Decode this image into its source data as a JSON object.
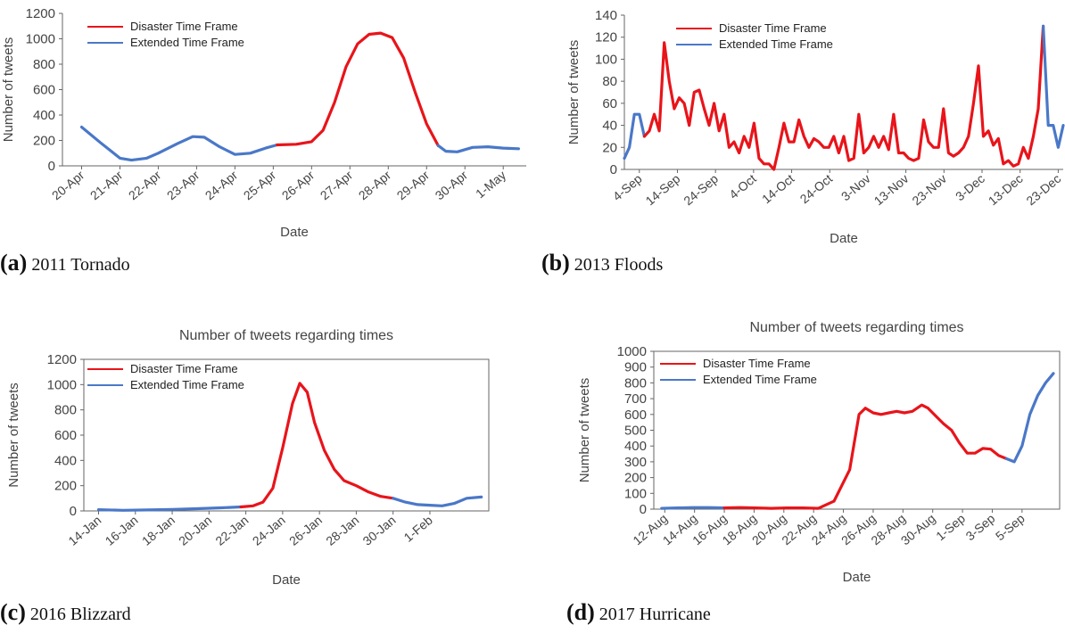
{
  "colors": {
    "disaster": "#e8141a",
    "extended": "#4a78c8"
  },
  "captions": [
    {
      "letter": "(a)",
      "text": "2011 Tornado"
    },
    {
      "letter": "(b)",
      "text": "2013 Floods"
    },
    {
      "letter": "(c)",
      "text": "2016 Blizzard"
    },
    {
      "letter": "(d)",
      "text": "2017 Hurricane"
    }
  ],
  "chart_data": [
    {
      "type": "line",
      "title": "",
      "xlabel": "Date",
      "ylabel": "Number of tweets",
      "ylim": [
        0,
        1200
      ],
      "yticks": [
        0,
        200,
        400,
        600,
        800,
        1000,
        1200
      ],
      "xticks": [
        "20-Apr",
        "21-Apr",
        "22-Apr",
        "23-Apr",
        "24-Apr",
        "25-Apr",
        "26-Apr",
        "27-Apr",
        "28-Apr",
        "29-Apr",
        "30-Apr",
        "1-May"
      ],
      "legend": [
        "Disaster Time Frame",
        "Extended Time Frame"
      ],
      "legend_position": "top-left",
      "grid": false,
      "series": [
        {
          "name": "Extended Time Frame",
          "points": [
            [
              0,
              305
            ],
            [
              0.5,
              180
            ],
            [
              1,
              60
            ],
            [
              1.3,
              45
            ],
            [
              1.7,
              60
            ],
            [
              2,
              100
            ],
            [
              2.5,
              175
            ],
            [
              2.9,
              230
            ],
            [
              3.2,
              225
            ],
            [
              3.6,
              150
            ],
            [
              4,
              90
            ],
            [
              4.4,
              100
            ],
            [
              4.8,
              140
            ],
            [
              5.1,
              165
            ]
          ]
        },
        {
          "name": "Disaster Time Frame",
          "points": [
            [
              5.1,
              165
            ],
            [
              5.6,
              170
            ],
            [
              6,
              190
            ],
            [
              6.3,
              280
            ],
            [
              6.6,
              500
            ],
            [
              6.9,
              780
            ],
            [
              7.2,
              960
            ],
            [
              7.5,
              1035
            ],
            [
              7.8,
              1045
            ],
            [
              8.1,
              1010
            ],
            [
              8.4,
              850
            ],
            [
              8.7,
              580
            ],
            [
              9,
              330
            ],
            [
              9.3,
              160
            ]
          ]
        },
        {
          "name": "Extended Time Frame",
          "points": [
            [
              9.3,
              160
            ],
            [
              9.5,
              115
            ],
            [
              9.8,
              110
            ],
            [
              10.2,
              145
            ],
            [
              10.6,
              150
            ],
            [
              11,
              140
            ],
            [
              11.4,
              135
            ]
          ]
        }
      ]
    },
    {
      "type": "line",
      "title": "",
      "xlabel": "Date",
      "ylabel": "Number of tweets",
      "ylim": [
        0,
        140
      ],
      "yticks": [
        0,
        20,
        40,
        60,
        80,
        100,
        120,
        140
      ],
      "xticks": [
        "4-Sep",
        "14-Sep",
        "24-Sep",
        "4-Oct",
        "14-Oct",
        "24-Oct",
        "3-Nov",
        "13-Nov",
        "23-Nov",
        "3-Dec",
        "13-Dec",
        "23-Dec"
      ],
      "legend": [
        "Disaster Time Frame",
        "Extended Time Frame"
      ],
      "legend_position": "top-left",
      "grid": false,
      "series": [
        {
          "name": "Extended Time Frame",
          "points": [
            [
              0,
              10
            ],
            [
              1,
              20
            ],
            [
              2,
              50
            ],
            [
              3,
              50
            ],
            [
              4,
              30
            ]
          ]
        },
        {
          "name": "Disaster Time Frame",
          "points": [
            [
              4,
              30
            ],
            [
              5,
              35
            ],
            [
              6,
              50
            ],
            [
              7,
              35
            ],
            [
              8,
              115
            ],
            [
              9,
              80
            ],
            [
              10,
              55
            ],
            [
              11,
              65
            ],
            [
              12,
              60
            ],
            [
              13,
              40
            ],
            [
              14,
              70
            ],
            [
              15,
              72
            ],
            [
              16,
              55
            ],
            [
              17,
              40
            ],
            [
              18,
              60
            ],
            [
              19,
              35
            ],
            [
              20,
              50
            ],
            [
              21,
              20
            ],
            [
              22,
              25
            ],
            [
              23,
              15
            ],
            [
              24,
              30
            ],
            [
              25,
              20
            ],
            [
              26,
              42
            ],
            [
              27,
              10
            ],
            [
              28,
              5
            ],
            [
              29,
              5
            ],
            [
              30,
              0
            ],
            [
              31,
              20
            ],
            [
              32,
              42
            ],
            [
              33,
              25
            ],
            [
              34,
              25
            ],
            [
              35,
              45
            ],
            [
              36,
              30
            ],
            [
              37,
              20
            ],
            [
              38,
              28
            ],
            [
              39,
              25
            ],
            [
              40,
              20
            ],
            [
              41,
              20
            ],
            [
              42,
              30
            ],
            [
              43,
              15
            ],
            [
              44,
              30
            ],
            [
              45,
              8
            ],
            [
              46,
              10
            ],
            [
              47,
              50
            ],
            [
              48,
              15
            ],
            [
              49,
              20
            ],
            [
              50,
              30
            ],
            [
              51,
              20
            ],
            [
              52,
              30
            ],
            [
              53,
              18
            ],
            [
              54,
              50
            ],
            [
              55,
              15
            ],
            [
              56,
              15
            ],
            [
              57,
              10
            ],
            [
              58,
              8
            ],
            [
              59,
              10
            ],
            [
              60,
              45
            ],
            [
              61,
              25
            ],
            [
              62,
              20
            ],
            [
              63,
              20
            ],
            [
              64,
              55
            ],
            [
              65,
              15
            ],
            [
              66,
              12
            ],
            [
              67,
              15
            ],
            [
              68,
              20
            ],
            [
              69,
              30
            ],
            [
              70,
              60
            ],
            [
              71,
              94
            ],
            [
              72,
              30
            ],
            [
              73,
              35
            ],
            [
              74,
              22
            ],
            [
              75,
              28
            ],
            [
              76,
              5
            ],
            [
              77,
              8
            ],
            [
              78,
              3
            ],
            [
              79,
              5
            ],
            [
              80,
              20
            ],
            [
              81,
              10
            ],
            [
              82,
              30
            ],
            [
              83,
              55
            ],
            [
              84,
              130
            ]
          ]
        },
        {
          "name": "Extended Time Frame",
          "points": [
            [
              84,
              130
            ],
            [
              85,
              40
            ],
            [
              86,
              40
            ],
            [
              87,
              20
            ],
            [
              88,
              40
            ]
          ]
        }
      ]
    },
    {
      "type": "line",
      "title": "Number of tweets regarding times",
      "xlabel": "Date",
      "ylabel": "Number of tweets",
      "ylim": [
        0,
        1200
      ],
      "yticks": [
        0,
        200,
        400,
        600,
        800,
        1000,
        1200
      ],
      "xticks": [
        "14-Jan",
        "16-Jan",
        "18-Jan",
        "20-Jan",
        "22-Jan",
        "24-Jan",
        "26-Jan",
        "28-Jan",
        "30-Jan",
        "1-Feb"
      ],
      "legend": [
        "Disaster Time Frame",
        "Extended Time Frame"
      ],
      "legend_position": "top-left",
      "grid": false,
      "series": [
        {
          "name": "Extended Time Frame",
          "points": [
            [
              0,
              10
            ],
            [
              1,
              5
            ],
            [
              2,
              8
            ],
            [
              3,
              12
            ],
            [
              4,
              18
            ],
            [
              5,
              25
            ],
            [
              5.8,
              32
            ]
          ]
        },
        {
          "name": "Disaster Time Frame",
          "points": [
            [
              5.8,
              32
            ],
            [
              6.3,
              40
            ],
            [
              6.7,
              70
            ],
            [
              7.1,
              180
            ],
            [
              7.5,
              500
            ],
            [
              7.9,
              850
            ],
            [
              8.2,
              1010
            ],
            [
              8.5,
              940
            ],
            [
              8.8,
              700
            ],
            [
              9.2,
              480
            ],
            [
              9.6,
              330
            ],
            [
              10,
              240
            ],
            [
              10.5,
              200
            ],
            [
              11,
              150
            ],
            [
              11.5,
              115
            ],
            [
              12,
              100
            ]
          ]
        },
        {
          "name": "Extended Time Frame",
          "points": [
            [
              12,
              100
            ],
            [
              12.5,
              70
            ],
            [
              13,
              50
            ],
            [
              13.5,
              45
            ],
            [
              14,
              40
            ],
            [
              14.5,
              60
            ],
            [
              15,
              100
            ],
            [
              15.6,
              110
            ]
          ]
        }
      ]
    },
    {
      "type": "line",
      "title": "Number of tweets regarding times",
      "xlabel": "Date",
      "ylabel": "Number of tweets",
      "ylim": [
        0,
        1000
      ],
      "yticks": [
        0,
        100,
        200,
        300,
        400,
        500,
        600,
        700,
        800,
        900,
        1000
      ],
      "xticks": [
        "12-Aug",
        "14-Aug",
        "16-Aug",
        "18-Aug",
        "20-Aug",
        "22-Aug",
        "24-Aug",
        "26-Aug",
        "28-Aug",
        "30-Aug",
        "1-Sep",
        "3-Sep",
        "5-Sep"
      ],
      "legend": [
        "Disaster Time Frame",
        "Extended Time Frame"
      ],
      "legend_position": "top-left",
      "grid": false,
      "series": [
        {
          "name": "Extended Time Frame",
          "points": [
            [
              0,
              5
            ],
            [
              1,
              8
            ],
            [
              2,
              10
            ],
            [
              3,
              10
            ],
            [
              4,
              8
            ]
          ]
        },
        {
          "name": "Disaster Time Frame",
          "points": [
            [
              4,
              8
            ],
            [
              5,
              10
            ],
            [
              6,
              8
            ],
            [
              7,
              5
            ],
            [
              8,
              8
            ],
            [
              9,
              8
            ],
            [
              10,
              5
            ],
            [
              11,
              50
            ],
            [
              12,
              250
            ],
            [
              12.6,
              600
            ],
            [
              13,
              640
            ],
            [
              13.5,
              610
            ],
            [
              14,
              600
            ],
            [
              14.5,
              610
            ],
            [
              15,
              620
            ],
            [
              15.5,
              610
            ],
            [
              16,
              620
            ],
            [
              16.6,
              660
            ],
            [
              17,
              640
            ],
            [
              17.5,
              590
            ],
            [
              18,
              540
            ],
            [
              18.5,
              500
            ],
            [
              19,
              420
            ],
            [
              19.5,
              355
            ],
            [
              20,
              355
            ],
            [
              20.5,
              385
            ],
            [
              21,
              380
            ],
            [
              21.5,
              340
            ],
            [
              22,
              320
            ]
          ]
        },
        {
          "name": "Extended Time Frame",
          "points": [
            [
              22,
              320
            ],
            [
              22.5,
              300
            ],
            [
              23,
              400
            ],
            [
              23.5,
              600
            ],
            [
              24,
              720
            ],
            [
              24.5,
              800
            ],
            [
              25,
              860
            ]
          ]
        }
      ]
    }
  ]
}
